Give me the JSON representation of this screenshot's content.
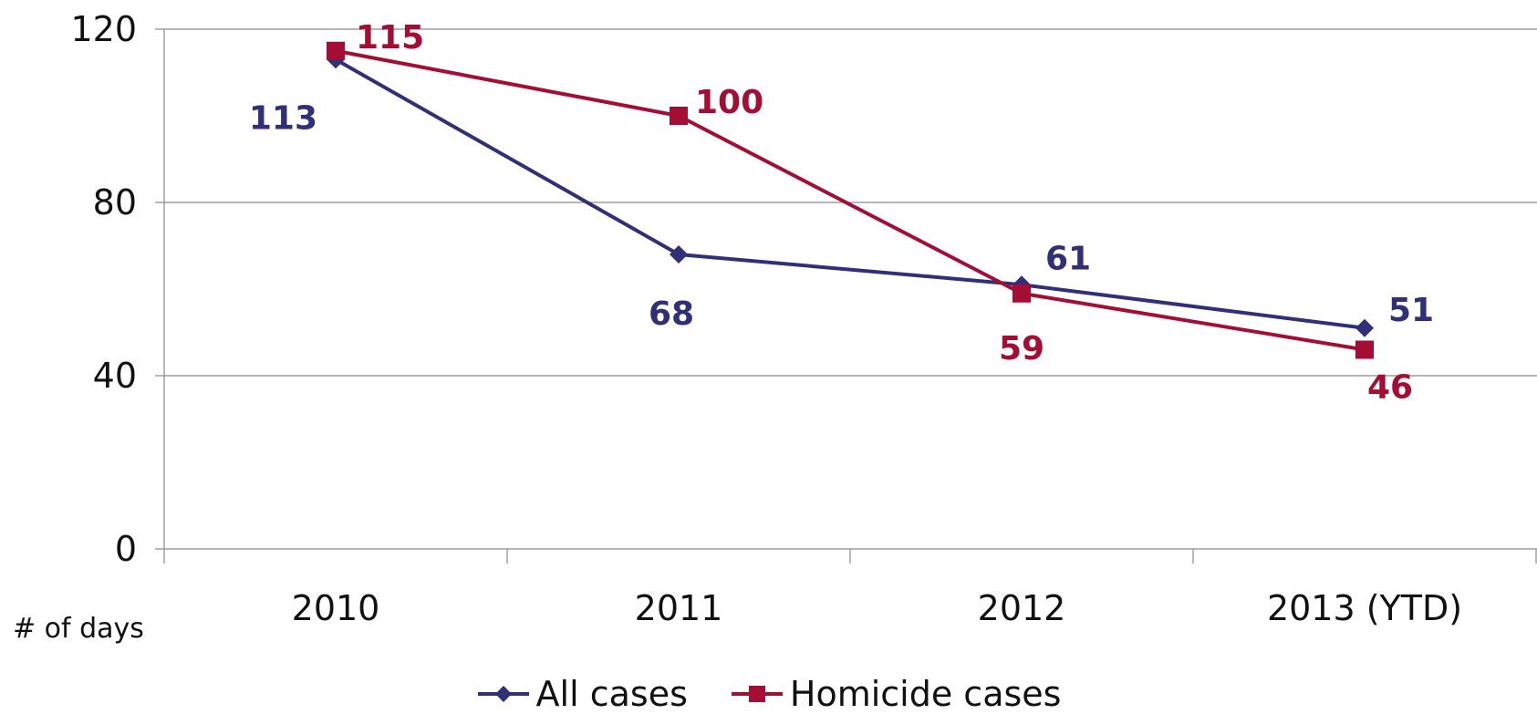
{
  "chart_data": {
    "type": "line",
    "categories": [
      "2010",
      "2011",
      "2012",
      "2013 (YTD)"
    ],
    "series": [
      {
        "name": "All cases",
        "values": [
          113,
          68,
          61,
          51
        ],
        "color": "#2F2F7A",
        "marker": "diamond"
      },
      {
        "name": "Homicide cases",
        "values": [
          115,
          100,
          59,
          46
        ],
        "color": "#A50E34",
        "marker": "square"
      }
    ],
    "ylabel": "# of days",
    "ylim": [
      0,
      120
    ],
    "yticks": [
      0,
      40,
      80,
      120
    ],
    "grid": true,
    "legend_position": "bottom"
  }
}
